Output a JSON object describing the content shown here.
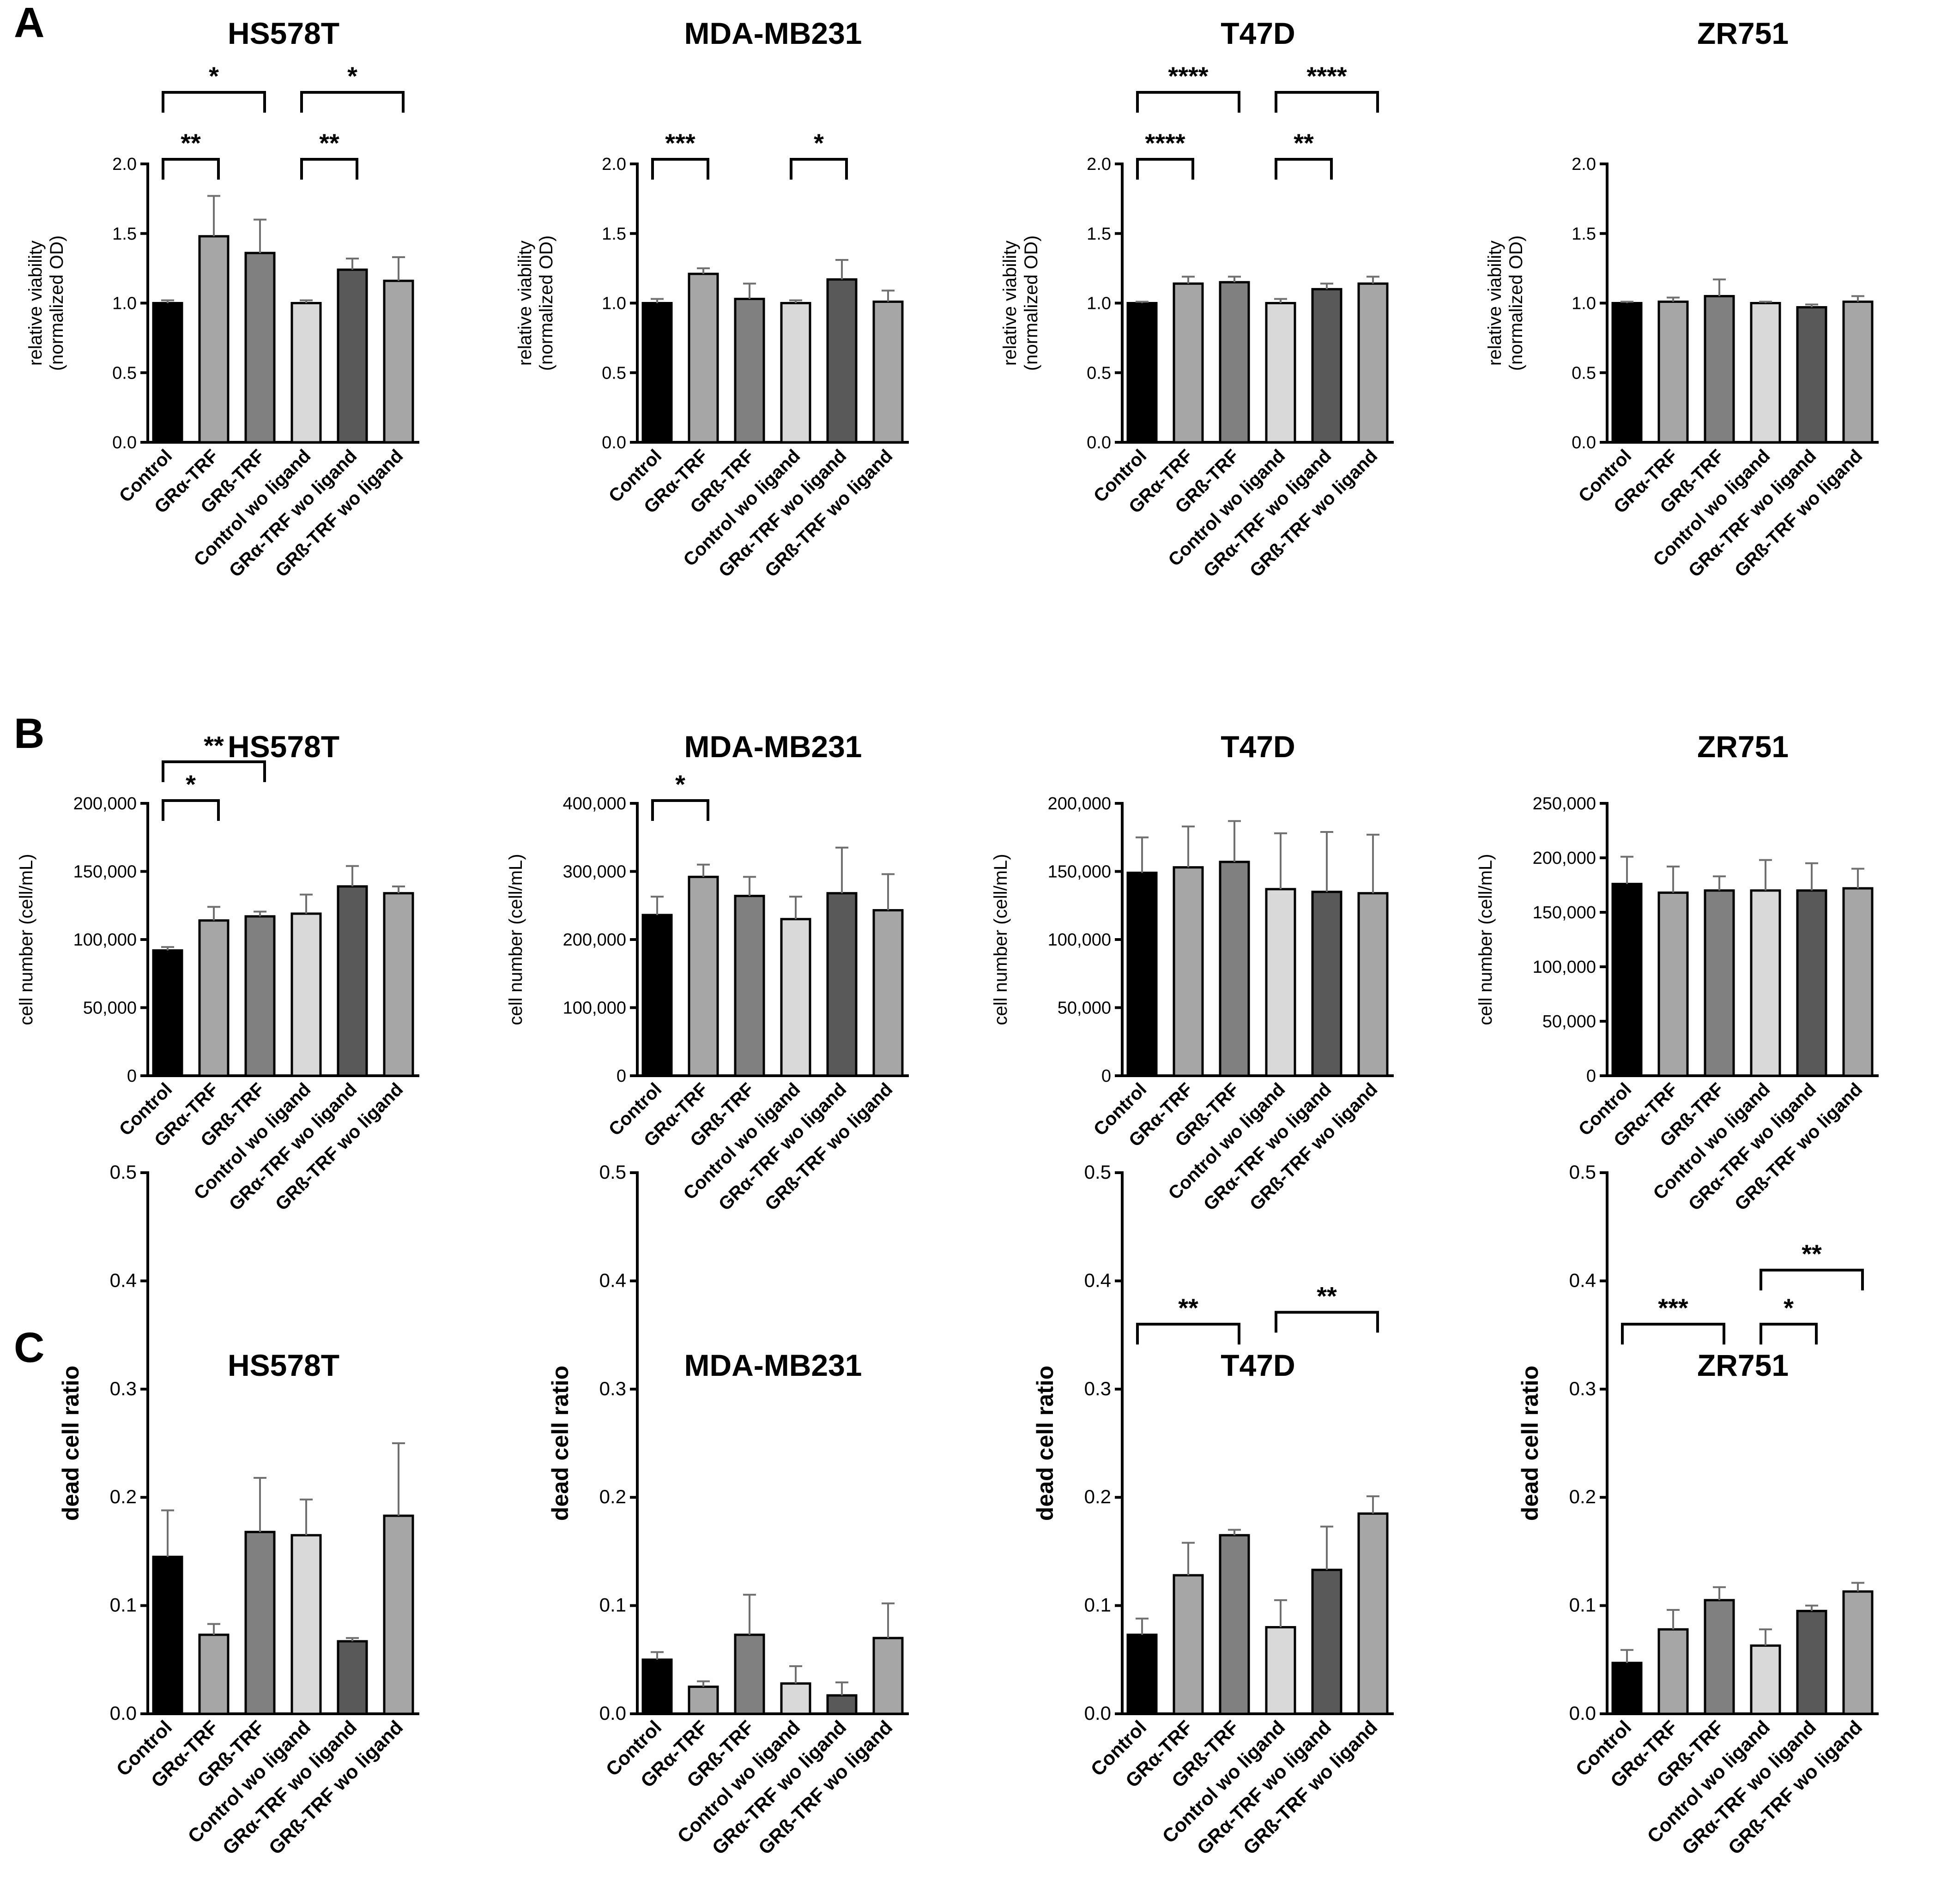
{
  "panel_letters": [
    "A",
    "B",
    "C"
  ],
  "categories": [
    "Control",
    "GRα-TRF",
    "GRß-TRF",
    "Control wo ligand",
    "GRα-TRF wo ligand",
    "GRß-TRF wo ligand"
  ],
  "bar_colors": [
    "#000000",
    "#a6a6a6",
    "#808080",
    "#d9d9d9",
    "#595959",
    "#a6a6a6"
  ],
  "chart_data": [
    {
      "panel": "A",
      "type": "bar",
      "title": "HS578T",
      "ylabel_lines": [
        "relative viability",
        "(normalized OD)"
      ],
      "ylim": [
        0,
        2.0
      ],
      "yticks": [
        0,
        0.5,
        1.0,
        1.5,
        2.0
      ],
      "ytick_labels": [
        "0.0",
        "0.5",
        "1.0",
        "1.5",
        "2.0"
      ],
      "values": [
        1.0,
        1.48,
        1.36,
        1.0,
        1.24,
        1.16
      ],
      "errors": [
        0.02,
        0.29,
        0.24,
        0.02,
        0.08,
        0.17
      ],
      "significance": [
        {
          "from": 0,
          "to": 1,
          "label": "**"
        },
        {
          "from": 0,
          "to": 2,
          "label": "*"
        },
        {
          "from": 3,
          "to": 4,
          "label": "**"
        },
        {
          "from": 3,
          "to": 5,
          "label": "*"
        }
      ]
    },
    {
      "panel": "A",
      "type": "bar",
      "title": "MDA-MB231",
      "ylabel_lines": [
        "relative viability",
        "(normalized OD)"
      ],
      "ylim": [
        0,
        2.0
      ],
      "yticks": [
        0,
        0.5,
        1.0,
        1.5,
        2.0
      ],
      "ytick_labels": [
        "0.0",
        "0.5",
        "1.0",
        "1.5",
        "2.0"
      ],
      "values": [
        1.0,
        1.21,
        1.03,
        1.0,
        1.17,
        1.01
      ],
      "errors": [
        0.03,
        0.04,
        0.11,
        0.02,
        0.14,
        0.08
      ],
      "significance": [
        {
          "from": 0,
          "to": 1,
          "label": "***"
        },
        {
          "from": 3,
          "to": 4,
          "label": "*"
        }
      ]
    },
    {
      "panel": "A",
      "type": "bar",
      "title": "T47D",
      "ylabel_lines": [
        "relative viability",
        "(normalized OD)"
      ],
      "ylim": [
        0,
        2.0
      ],
      "yticks": [
        0,
        0.5,
        1.0,
        1.5,
        2.0
      ],
      "ytick_labels": [
        "0.0",
        "0.5",
        "1.0",
        "1.5",
        "2.0"
      ],
      "values": [
        1.0,
        1.14,
        1.15,
        1.0,
        1.1,
        1.14
      ],
      "errors": [
        0.01,
        0.05,
        0.04,
        0.03,
        0.04,
        0.05
      ],
      "significance": [
        {
          "from": 0,
          "to": 1,
          "label": "****"
        },
        {
          "from": 0,
          "to": 2,
          "label": "****"
        },
        {
          "from": 3,
          "to": 4,
          "label": "**"
        },
        {
          "from": 3,
          "to": 5,
          "label": "****"
        }
      ]
    },
    {
      "panel": "A",
      "type": "bar",
      "title": "ZR751",
      "ylabel_lines": [
        "relative viability",
        "(normalized OD)"
      ],
      "ylim": [
        0,
        2.0
      ],
      "yticks": [
        0,
        0.5,
        1.0,
        1.5,
        2.0
      ],
      "ytick_labels": [
        "0.0",
        "0.5",
        "1.0",
        "1.5",
        "2.0"
      ],
      "values": [
        1.0,
        1.01,
        1.05,
        1.0,
        0.97,
        1.01
      ],
      "errors": [
        0.01,
        0.03,
        0.12,
        0.01,
        0.02,
        0.04
      ],
      "significance": []
    },
    {
      "panel": "B",
      "type": "bar",
      "title": "HS578T",
      "ylabel_lines": [
        "cell number (cell/mL)"
      ],
      "ylim": [
        0,
        200000
      ],
      "yticks": [
        0,
        50000,
        100000,
        150000,
        200000
      ],
      "ytick_labels": [
        "0",
        "50,000",
        "100,000",
        "150,000",
        "200,000"
      ],
      "values": [
        92000,
        114000,
        117000,
        119000,
        139000,
        134000
      ],
      "errors": [
        2500,
        10000,
        3500,
        14000,
        15000,
        5000
      ],
      "significance": [
        {
          "from": 0,
          "to": 1,
          "label": "*"
        },
        {
          "from": 0,
          "to": 2,
          "label": "**"
        }
      ]
    },
    {
      "panel": "B",
      "type": "bar",
      "title": "MDA-MB231",
      "ylabel_lines": [
        "cell number (cell/mL)"
      ],
      "ylim": [
        0,
        400000
      ],
      "yticks": [
        0,
        100000,
        200000,
        300000,
        400000
      ],
      "ytick_labels": [
        "0",
        "100,000",
        "200,000",
        "300,000",
        "400,000"
      ],
      "values": [
        236000,
        292000,
        264000,
        230000,
        268000,
        243000
      ],
      "errors": [
        27000,
        18000,
        28000,
        33000,
        67000,
        53000
      ],
      "significance": [
        {
          "from": 0,
          "to": 1,
          "label": "*"
        }
      ]
    },
    {
      "panel": "B",
      "type": "bar",
      "title": "T47D",
      "ylabel_lines": [
        "cell number (cell/mL)"
      ],
      "ylim": [
        0,
        200000
      ],
      "yticks": [
        0,
        50000,
        100000,
        150000,
        200000
      ],
      "ytick_labels": [
        "0",
        "50,000",
        "100,000",
        "150,000",
        "200,000"
      ],
      "values": [
        149000,
        153000,
        157000,
        137000,
        135000,
        134000
      ],
      "errors": [
        26000,
        30000,
        30000,
        41000,
        44000,
        43000
      ],
      "significance": []
    },
    {
      "panel": "B",
      "type": "bar",
      "title": "ZR751",
      "ylabel_lines": [
        "cell number (cell/mL)"
      ],
      "ylim": [
        0,
        250000
      ],
      "yticks": [
        0,
        50000,
        100000,
        150000,
        200000,
        250000
      ],
      "ytick_labels": [
        "0",
        "50,000",
        "100,000",
        "150,000",
        "200,000",
        "250,000"
      ],
      "values": [
        176000,
        168000,
        170000,
        170000,
        170000,
        172000
      ],
      "errors": [
        25000,
        24000,
        13000,
        28000,
        25000,
        18000
      ],
      "significance": []
    },
    {
      "panel": "C",
      "type": "bar",
      "title": "HS578T",
      "ylabel_lines": [
        "dead cell ratio"
      ],
      "ylim": [
        0,
        0.5
      ],
      "yticks": [
        0,
        0.1,
        0.2,
        0.3,
        0.4,
        0.5
      ],
      "ytick_labels": [
        "0.0",
        "0.1",
        "0.2",
        "0.3",
        "0.4",
        "0.5"
      ],
      "values": [
        0.145,
        0.073,
        0.168,
        0.165,
        0.067,
        0.183
      ],
      "errors": [
        0.043,
        0.01,
        0.05,
        0.033,
        0.003,
        0.067
      ],
      "significance": []
    },
    {
      "panel": "C",
      "type": "bar",
      "title": "MDA-MB231",
      "ylabel_lines": [
        "dead cell ratio"
      ],
      "ylim": [
        0,
        0.5
      ],
      "yticks": [
        0,
        0.1,
        0.2,
        0.3,
        0.4,
        0.5
      ],
      "ytick_labels": [
        "0.0",
        "0.1",
        "0.2",
        "0.3",
        "0.4",
        "0.5"
      ],
      "values": [
        0.05,
        0.025,
        0.073,
        0.028,
        0.017,
        0.07
      ],
      "errors": [
        0.007,
        0.005,
        0.037,
        0.016,
        0.012,
        0.032
      ],
      "significance": []
    },
    {
      "panel": "C",
      "type": "bar",
      "title": "T47D",
      "ylabel_lines": [
        "dead cell ratio"
      ],
      "ylim": [
        0,
        0.5
      ],
      "yticks": [
        0,
        0.1,
        0.2,
        0.3,
        0.4,
        0.5
      ],
      "ytick_labels": [
        "0.0",
        "0.1",
        "0.2",
        "0.3",
        "0.4",
        "0.5"
      ],
      "values": [
        0.073,
        0.128,
        0.165,
        0.08,
        0.133,
        0.185
      ],
      "errors": [
        0.015,
        0.03,
        0.005,
        0.025,
        0.04,
        0.016
      ],
      "significance": [
        {
          "from": 0,
          "to": 2,
          "label": "**"
        },
        {
          "from": 3,
          "to": 5,
          "label": "**"
        }
      ]
    },
    {
      "panel": "C",
      "type": "bar",
      "title": "ZR751",
      "ylabel_lines": [
        "dead cell ratio"
      ],
      "ylim": [
        0,
        0.5
      ],
      "yticks": [
        0,
        0.1,
        0.2,
        0.3,
        0.4,
        0.5
      ],
      "ytick_labels": [
        "0.0",
        "0.1",
        "0.2",
        "0.3",
        "0.4",
        "0.5"
      ],
      "values": [
        0.047,
        0.078,
        0.105,
        0.063,
        0.095,
        0.113
      ],
      "errors": [
        0.012,
        0.018,
        0.012,
        0.015,
        0.005,
        0.008
      ],
      "significance": [
        {
          "from": 0,
          "to": 2,
          "label": "***"
        },
        {
          "from": 3,
          "to": 4,
          "label": "*"
        },
        {
          "from": 3,
          "to": 5,
          "label": "**"
        }
      ]
    }
  ]
}
